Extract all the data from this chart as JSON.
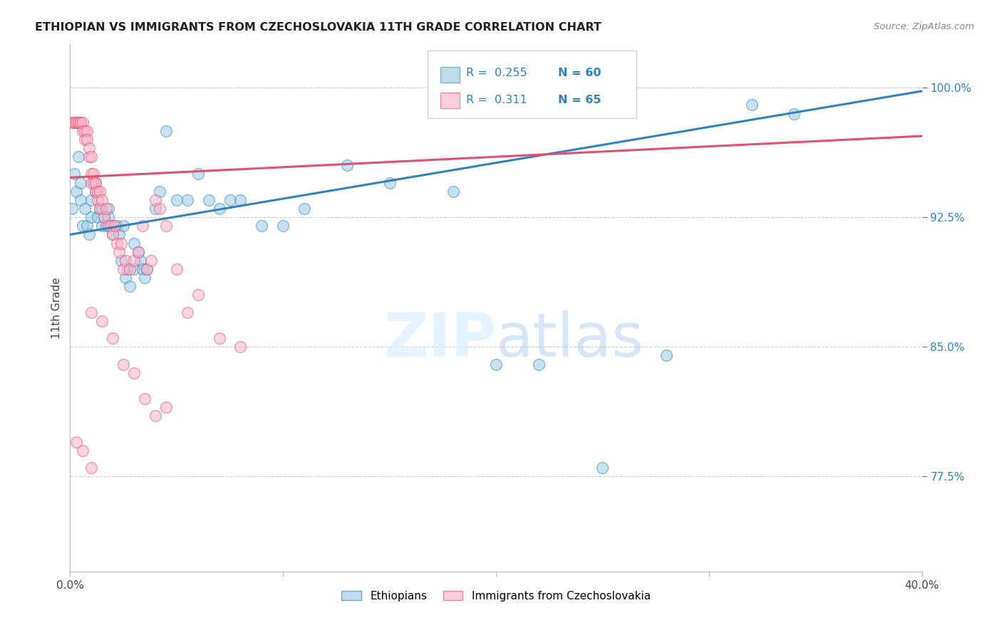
{
  "title": "ETHIOPIAN VS IMMIGRANTS FROM CZECHOSLOVAKIA 11TH GRADE CORRELATION CHART",
  "source": "Source: ZipAtlas.com",
  "ylabel": "11th Grade",
  "ytick_labels": [
    "77.5%",
    "85.0%",
    "92.5%",
    "100.0%"
  ],
  "ytick_values": [
    0.775,
    0.85,
    0.925,
    1.0
  ],
  "xmin": 0.0,
  "xmax": 0.4,
  "ymin": 0.72,
  "ymax": 1.025,
  "blue_color": "#9ecae1",
  "pink_color": "#fbb4c9",
  "blue_line_color": "#3182bd",
  "pink_line_color": "#e05070",
  "blue_line": [
    0.0,
    0.915,
    0.4,
    0.998
  ],
  "pink_line": [
    0.0,
    0.948,
    0.4,
    0.972
  ],
  "legend_r1_val": "0.255",
  "legend_n1_val": "60",
  "legend_r2_val": "0.311",
  "legend_n2_val": "65",
  "blue_x": [
    0.001,
    0.002,
    0.003,
    0.004,
    0.005,
    0.005,
    0.006,
    0.007,
    0.008,
    0.009,
    0.01,
    0.01,
    0.012,
    0.012,
    0.013,
    0.014,
    0.015,
    0.015,
    0.016,
    0.017,
    0.018,
    0.018,
    0.02,
    0.02,
    0.022,
    0.023,
    0.024,
    0.025,
    0.026,
    0.027,
    0.028,
    0.03,
    0.03,
    0.032,
    0.033,
    0.034,
    0.035,
    0.036,
    0.04,
    0.042,
    0.045,
    0.05,
    0.055,
    0.06,
    0.065,
    0.07,
    0.075,
    0.08,
    0.09,
    0.1,
    0.11,
    0.13,
    0.15,
    0.18,
    0.2,
    0.22,
    0.25,
    0.28,
    0.32,
    0.34
  ],
  "blue_y": [
    0.93,
    0.95,
    0.94,
    0.96,
    0.935,
    0.945,
    0.92,
    0.93,
    0.92,
    0.915,
    0.935,
    0.925,
    0.94,
    0.945,
    0.925,
    0.93,
    0.92,
    0.93,
    0.925,
    0.92,
    0.93,
    0.925,
    0.92,
    0.915,
    0.92,
    0.915,
    0.9,
    0.92,
    0.89,
    0.895,
    0.885,
    0.91,
    0.895,
    0.905,
    0.9,
    0.895,
    0.89,
    0.895,
    0.93,
    0.94,
    0.975,
    0.935,
    0.935,
    0.95,
    0.935,
    0.93,
    0.935,
    0.935,
    0.92,
    0.92,
    0.93,
    0.955,
    0.945,
    0.94,
    0.84,
    0.84,
    0.78,
    0.845,
    0.99,
    0.985
  ],
  "pink_x": [
    0.001,
    0.002,
    0.002,
    0.003,
    0.003,
    0.004,
    0.004,
    0.005,
    0.005,
    0.006,
    0.006,
    0.007,
    0.007,
    0.008,
    0.008,
    0.009,
    0.009,
    0.01,
    0.01,
    0.01,
    0.011,
    0.011,
    0.012,
    0.012,
    0.013,
    0.013,
    0.014,
    0.014,
    0.015,
    0.016,
    0.017,
    0.018,
    0.019,
    0.02,
    0.021,
    0.022,
    0.023,
    0.024,
    0.025,
    0.026,
    0.028,
    0.03,
    0.032,
    0.034,
    0.036,
    0.038,
    0.04,
    0.042,
    0.045,
    0.05,
    0.055,
    0.06,
    0.07,
    0.08,
    0.01,
    0.015,
    0.02,
    0.025,
    0.03,
    0.035,
    0.04,
    0.045,
    0.003,
    0.006,
    0.01
  ],
  "pink_y": [
    0.98,
    0.98,
    0.98,
    0.98,
    0.98,
    0.98,
    0.98,
    0.98,
    0.98,
    0.98,
    0.975,
    0.975,
    0.97,
    0.975,
    0.97,
    0.96,
    0.965,
    0.96,
    0.95,
    0.945,
    0.95,
    0.945,
    0.94,
    0.945,
    0.94,
    0.935,
    0.94,
    0.93,
    0.935,
    0.925,
    0.93,
    0.92,
    0.92,
    0.915,
    0.92,
    0.91,
    0.905,
    0.91,
    0.895,
    0.9,
    0.895,
    0.9,
    0.905,
    0.92,
    0.895,
    0.9,
    0.935,
    0.93,
    0.92,
    0.895,
    0.87,
    0.88,
    0.855,
    0.85,
    0.87,
    0.865,
    0.855,
    0.84,
    0.835,
    0.82,
    0.81,
    0.815,
    0.795,
    0.79,
    0.78
  ]
}
